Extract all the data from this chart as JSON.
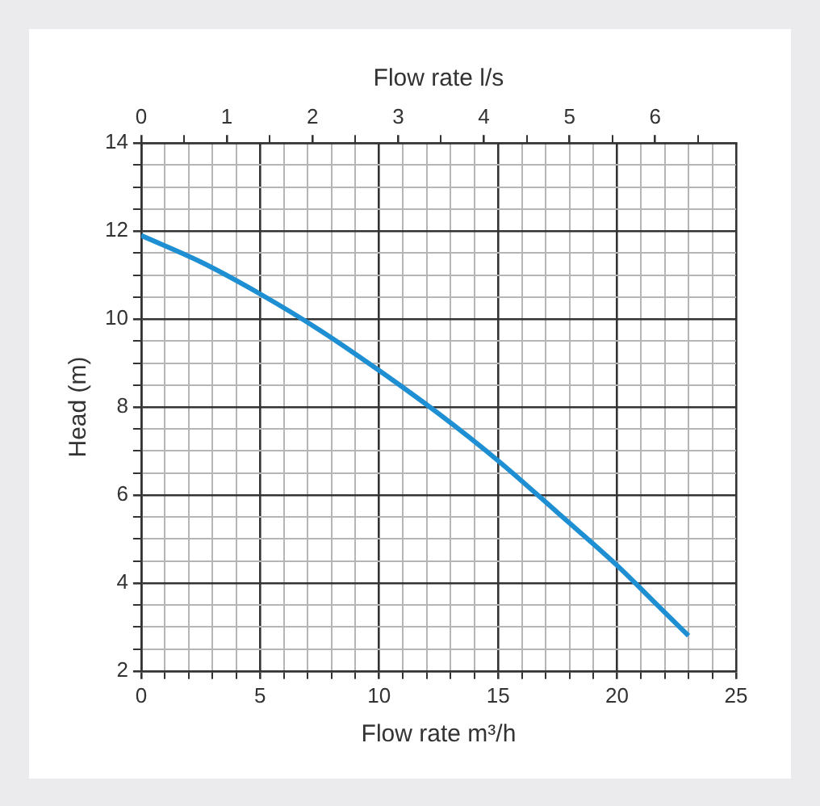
{
  "chart_data": {
    "type": "line",
    "xlabel": "Flow rate m³/h",
    "x2label": "Flow rate l/s",
    "ylabel": "Head (m)",
    "xlim": [
      0,
      25
    ],
    "xticks": [
      0,
      {
        "value": 1,
        "label": null
      },
      {
        "value": 2,
        "label": null
      },
      {
        "value": 3,
        "label": null
      },
      {
        "value": 4,
        "label": null
      },
      5,
      {
        "value": 6,
        "label": null
      },
      {
        "value": 7,
        "label": null
      },
      {
        "value": 8,
        "label": null
      },
      {
        "value": 9,
        "label": null
      },
      10,
      {
        "value": 11,
        "label": null
      },
      {
        "value": 12,
        "label": null
      },
      {
        "value": 13,
        "label": null
      },
      {
        "value": 14,
        "label": null
      },
      15,
      {
        "value": 16,
        "label": null
      },
      {
        "value": 17,
        "label": null
      },
      {
        "value": 18,
        "label": null
      },
      {
        "value": 19,
        "label": null
      },
      20,
      {
        "value": 21,
        "label": null
      },
      {
        "value": 22,
        "label": null
      },
      {
        "value": 23,
        "label": null
      },
      {
        "value": 24,
        "label": null
      },
      25
    ],
    "x2lim": [
      0,
      6.944
    ],
    "x2ticks": [
      0,
      {
        "value": 0.5,
        "label": null
      },
      1,
      {
        "value": 1.5,
        "label": null
      },
      2,
      {
        "value": 2.5,
        "label": null
      },
      3,
      {
        "value": 3.5,
        "label": null
      },
      4,
      {
        "value": 4.5,
        "label": null
      },
      5,
      {
        "value": 5.5,
        "label": null
      },
      6,
      {
        "value": 6.5,
        "label": null
      }
    ],
    "ylim": [
      2,
      14
    ],
    "yticks": [
      2,
      {
        "value": 2.5,
        "label": null
      },
      {
        "value": 3,
        "label": null
      },
      {
        "value": 3.5,
        "label": null
      },
      4,
      {
        "value": 4.5,
        "label": null
      },
      {
        "value": 5,
        "label": null
      },
      {
        "value": 5.5,
        "label": null
      },
      6,
      {
        "value": 6.5,
        "label": null
      },
      {
        "value": 7,
        "label": null
      },
      {
        "value": 7.5,
        "label": null
      },
      8,
      {
        "value": 8.5,
        "label": null
      },
      {
        "value": 9,
        "label": null
      },
      {
        "value": 9.5,
        "label": null
      },
      10,
      {
        "value": 10.5,
        "label": null
      },
      {
        "value": 11,
        "label": null
      },
      {
        "value": 11.5,
        "label": null
      },
      12,
      {
        "value": 12.5,
        "label": null
      },
      {
        "value": 13,
        "label": null
      },
      {
        "value": 13.5,
        "label": null
      },
      14
    ],
    "grid": true,
    "legend": false,
    "marker": "none",
    "line_style": "solid",
    "series": [
      {
        "color": "#1e8fd2",
        "x": [
          0,
          2.5,
          5,
          7.5,
          10,
          12.5,
          15,
          17.5,
          20,
          21.5,
          23
        ],
        "values": [
          11.9,
          11.3,
          10.57,
          9.75,
          8.83,
          7.85,
          6.78,
          5.6,
          4.4,
          3.6,
          2.8
        ]
      }
    ]
  }
}
